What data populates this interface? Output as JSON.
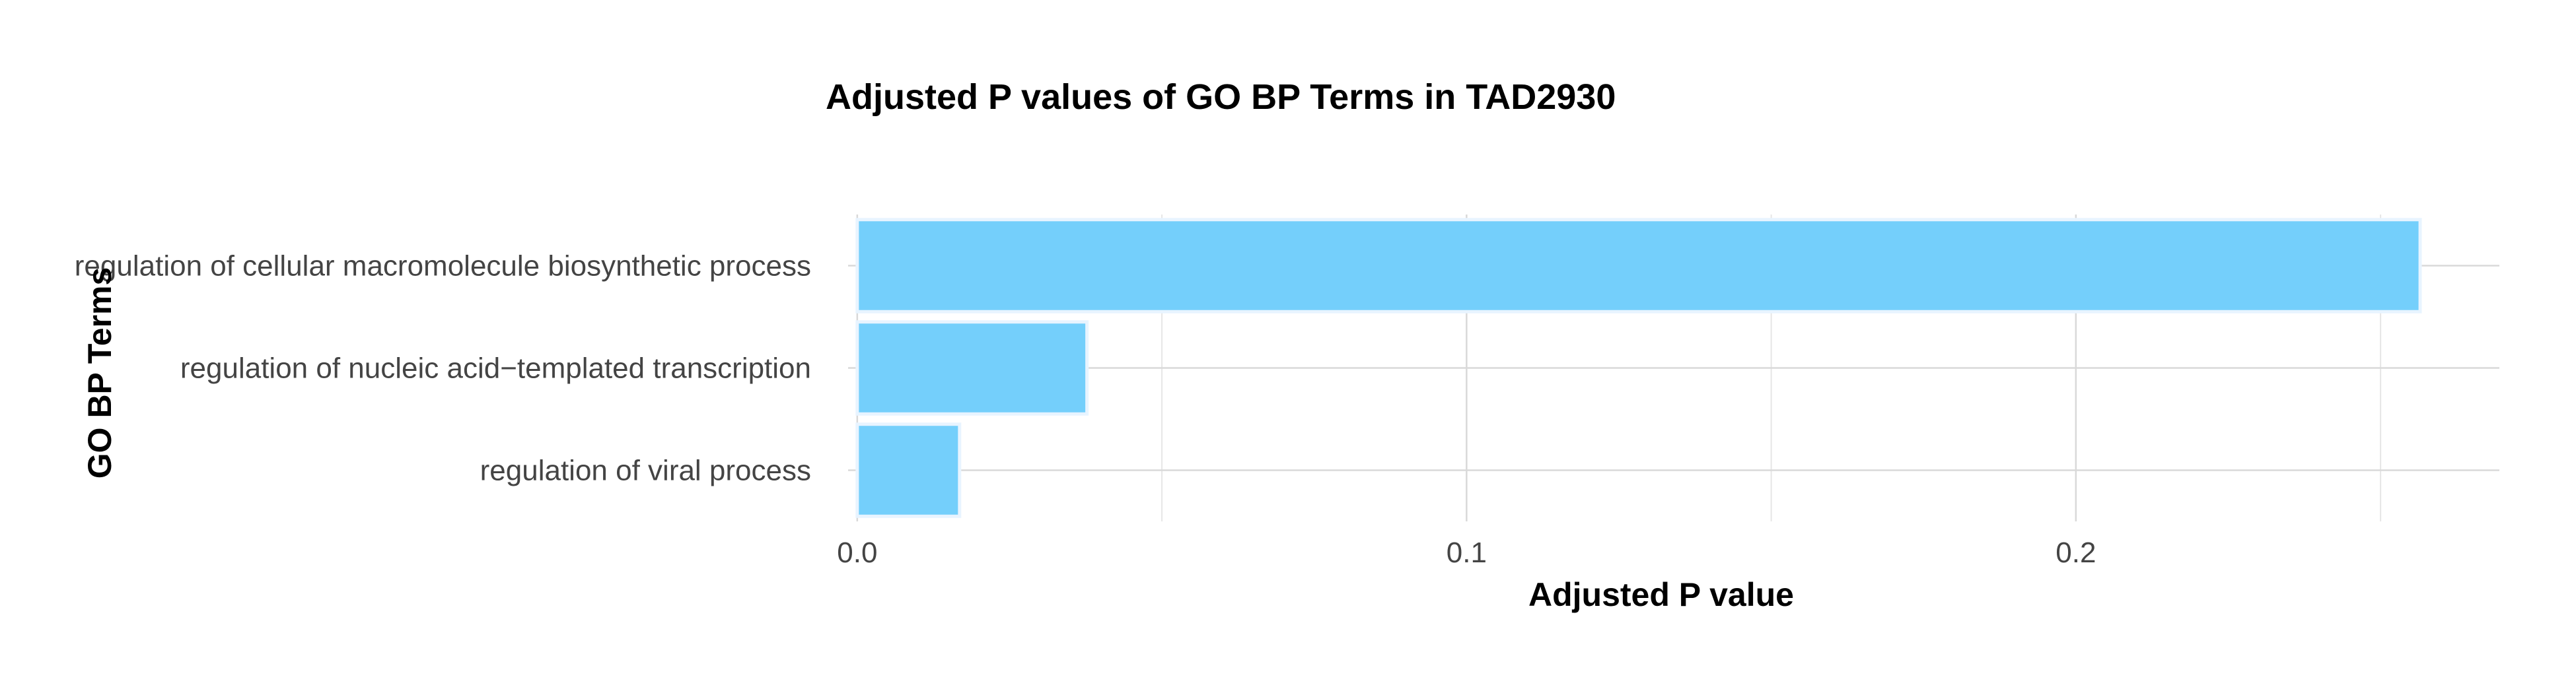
{
  "chart_data": {
    "type": "bar",
    "orientation": "horizontal",
    "title": "Adjusted P values of GO BP Terms in TAD2930",
    "xlabel": "Adjusted P value",
    "ylabel": "GO BP Terms",
    "categories": [
      "regulation of cellular macromolecule biosynthetic process",
      "regulation of nucleic acid−templated transcription",
      "regulation of viral process"
    ],
    "values": [
      0.2565,
      0.0377,
      0.0168
    ],
    "xlim": [
      -0.0015,
      0.2695
    ],
    "xticks": [
      0.0,
      0.1,
      0.2
    ],
    "xtick_labels": [
      "0.0",
      "0.1",
      "0.2"
    ],
    "minor_xticks": [
      0.05,
      0.15,
      0.25
    ],
    "grid": true,
    "bar_color": "#74cffb",
    "legend": "none"
  }
}
